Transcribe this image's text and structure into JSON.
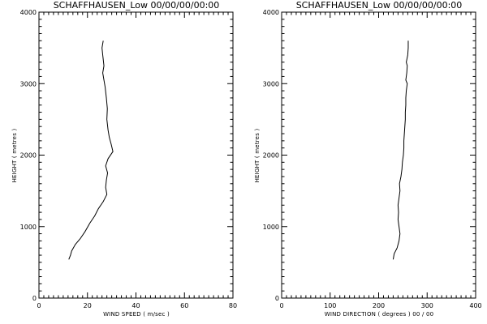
{
  "chart_data": [
    {
      "type": "line",
      "title": "SCHAFFHAUSEN_Low 00/00/00/00:00",
      "xlabel": "WIND SPEED ( m/sec )",
      "ylabel": "HEIGHT ( metres )",
      "xlim": [
        0,
        80
      ],
      "ylim": [
        0,
        4000
      ],
      "xticks": [
        "0",
        "20",
        "40",
        "60",
        "80"
      ],
      "yticks": [
        "0",
        "1000",
        "2000",
        "3000",
        "4000"
      ],
      "grid": false,
      "line_color": "#000000",
      "series": [
        {
          "points": [
            [
              12.3,
              540
            ],
            [
              13.0,
              600
            ],
            [
              13.5,
              660
            ],
            [
              15.0,
              750
            ],
            [
              17.0,
              830
            ],
            [
              19.0,
              930
            ],
            [
              21.0,
              1050
            ],
            [
              23.0,
              1150
            ],
            [
              24.5,
              1250
            ],
            [
              26.5,
              1350
            ],
            [
              28.0,
              1450
            ],
            [
              27.5,
              1550
            ],
            [
              27.8,
              1650
            ],
            [
              28.3,
              1750
            ],
            [
              27.5,
              1850
            ],
            [
              28.5,
              1950
            ],
            [
              30.5,
              2050
            ],
            [
              29.8,
              2150
            ],
            [
              29.0,
              2250
            ],
            [
              28.5,
              2350
            ],
            [
              28.0,
              2500
            ],
            [
              28.2,
              2650
            ],
            [
              27.8,
              2800
            ],
            [
              27.3,
              2950
            ],
            [
              26.8,
              3050
            ],
            [
              26.3,
              3150
            ],
            [
              26.8,
              3250
            ],
            [
              26.3,
              3400
            ],
            [
              26.0,
              3500
            ],
            [
              26.5,
              3600
            ]
          ]
        }
      ]
    },
    {
      "type": "line",
      "title": "SCHAFFHAUSEN_Low 00/00/00/00:00",
      "xlabel": "WIND DIRECTION ( degrees ) 00 / 00",
      "ylabel": "HEIGHT ( metres )",
      "xlim": [
        0,
        400
      ],
      "ylim": [
        0,
        4000
      ],
      "xticks": [
        "0",
        "100",
        "200",
        "300",
        "400"
      ],
      "yticks": [
        "0",
        "1000",
        "2000",
        "3000",
        "4000"
      ],
      "grid": false,
      "line_color": "#000000",
      "series": [
        {
          "points": [
            [
              230,
              540
            ],
            [
              232,
              620
            ],
            [
              238,
              700
            ],
            [
              242,
              800
            ],
            [
              244,
              900
            ],
            [
              242,
              1000
            ],
            [
              240,
              1100
            ],
            [
              241,
              1200
            ],
            [
              240,
              1300
            ],
            [
              242,
              1400
            ],
            [
              244,
              1500
            ],
            [
              243,
              1600
            ],
            [
              246,
              1700
            ],
            [
              248,
              1800
            ],
            [
              249,
              1900
            ],
            [
              251,
              2000
            ],
            [
              252,
              2100
            ],
            [
              252,
              2200
            ],
            [
              253,
              2300
            ],
            [
              254,
              2400
            ],
            [
              255,
              2500
            ],
            [
              255,
              2600
            ],
            [
              256,
              2700
            ],
            [
              256,
              2800
            ],
            [
              257,
              2900
            ],
            [
              259,
              3000
            ],
            [
              256,
              3050
            ],
            [
              258,
              3150
            ],
            [
              259,
              3250
            ],
            [
              257,
              3300
            ],
            [
              260,
              3400
            ],
            [
              261,
              3500
            ],
            [
              261,
              3600
            ]
          ]
        }
      ]
    }
  ]
}
